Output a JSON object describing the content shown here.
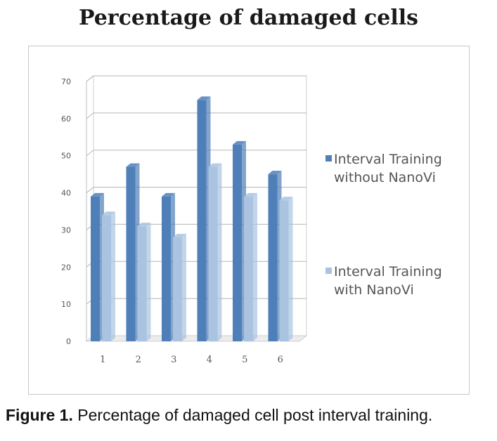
{
  "chart_data": {
    "type": "bar",
    "title": "Percentage of damaged cells",
    "categories": [
      "1",
      "2",
      "3",
      "4",
      "5",
      "6"
    ],
    "series": [
      {
        "name": "Interval Training\nwithout NanoVi",
        "values": [
          39,
          47,
          39,
          65,
          53,
          45
        ]
      },
      {
        "name": "Interval Training\nwith NanoVi",
        "values": [
          34,
          31,
          28,
          47,
          39,
          38
        ]
      }
    ],
    "ylim": [
      0,
      70
    ],
    "yticks": [
      "0",
      "10",
      "20",
      "30",
      "40",
      "50",
      "60",
      "70"
    ],
    "xlabel": "",
    "ylabel": "",
    "grid": true,
    "legend_position": "right",
    "colors": {
      "series1": "#4f7fb8",
      "series2": "#a9c3e0",
      "grid": "#b5b5b5"
    }
  },
  "caption": {
    "label": "Figure 1.",
    "text": " Percentage of damaged cell post interval training."
  }
}
